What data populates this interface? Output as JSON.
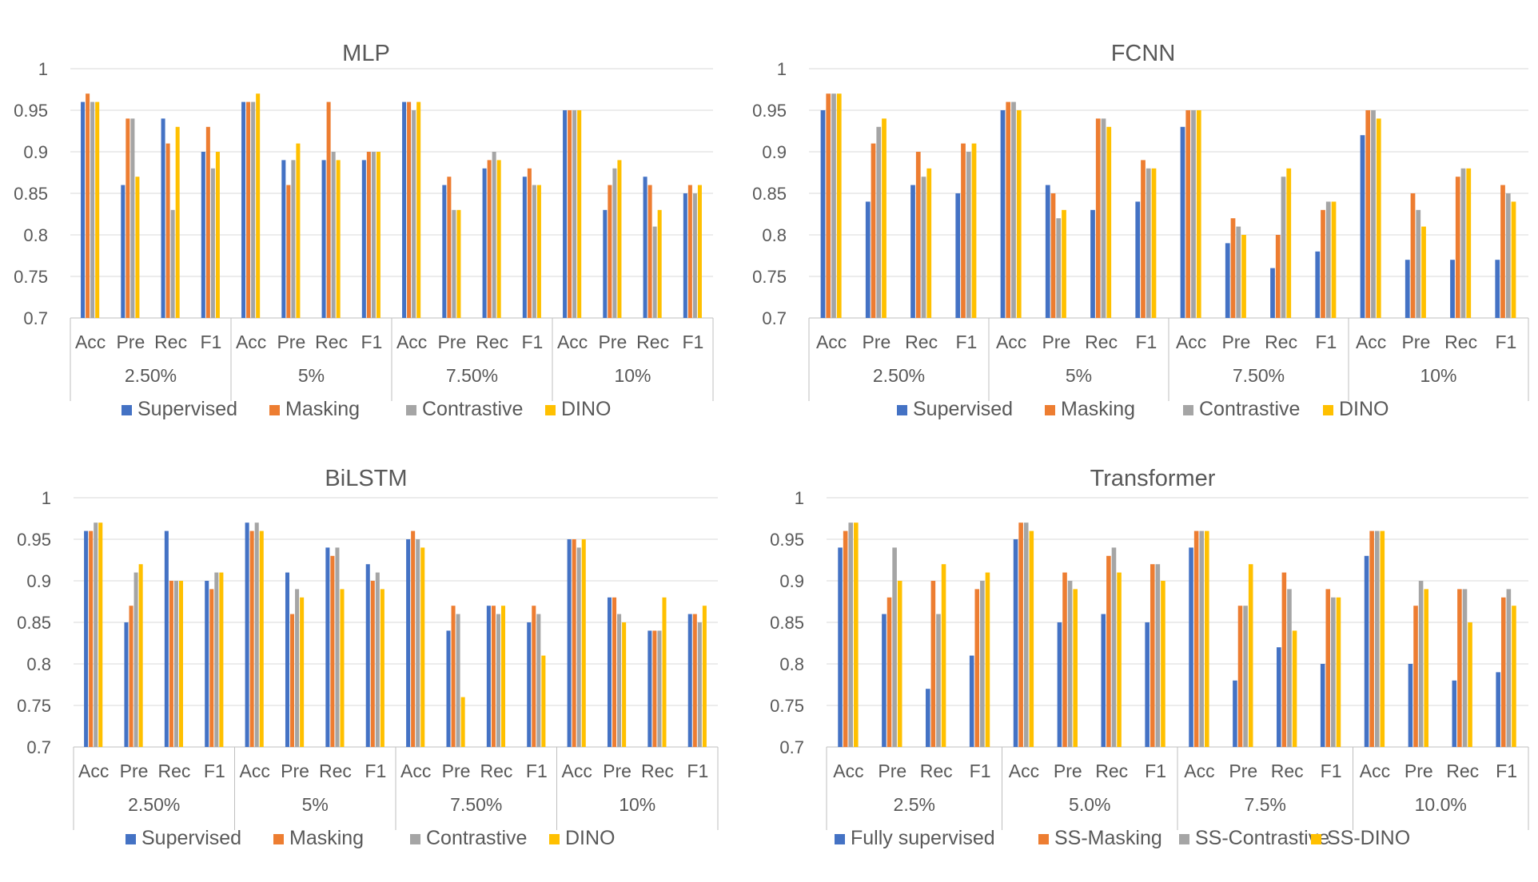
{
  "colors": {
    "series": [
      "#4472C4",
      "#ED7D31",
      "#A5A5A5",
      "#FFC000"
    ]
  },
  "chart_data": [
    {
      "type": "bar",
      "title": "MLP",
      "groups": [
        "2.50%",
        "5%",
        "7.50%",
        "10%"
      ],
      "metrics": [
        "Acc",
        "Pre",
        "Rec",
        "F1"
      ],
      "yticks": [
        "0.7",
        "0.75",
        "0.8",
        "0.85",
        "0.9",
        "0.95",
        "1"
      ],
      "ylim": [
        0.7,
        1.0
      ],
      "series": [
        {
          "name": "Supervised",
          "values": [
            0.96,
            0.86,
            0.94,
            0.9,
            0.96,
            0.89,
            0.89,
            0.89,
            0.96,
            0.86,
            0.88,
            0.87,
            0.95,
            0.83,
            0.87,
            0.85
          ]
        },
        {
          "name": "Masking",
          "values": [
            0.97,
            0.94,
            0.91,
            0.93,
            0.96,
            0.86,
            0.96,
            0.9,
            0.96,
            0.87,
            0.89,
            0.88,
            0.95,
            0.86,
            0.86,
            0.86
          ]
        },
        {
          "name": "Contrastive",
          "values": [
            0.96,
            0.94,
            0.83,
            0.88,
            0.96,
            0.89,
            0.9,
            0.9,
            0.95,
            0.83,
            0.9,
            0.86,
            0.95,
            0.88,
            0.81,
            0.85
          ]
        },
        {
          "name": "DINO",
          "values": [
            0.96,
            0.87,
            0.93,
            0.9,
            0.97,
            0.91,
            0.89,
            0.9,
            0.96,
            0.83,
            0.89,
            0.86,
            0.95,
            0.89,
            0.83,
            0.86
          ]
        }
      ]
    },
    {
      "type": "bar",
      "title": "FCNN",
      "groups": [
        "2.50%",
        "5%",
        "7.50%",
        "10%"
      ],
      "metrics": [
        "Acc",
        "Pre",
        "Rec",
        "F1"
      ],
      "yticks": [
        "0.7",
        "0.75",
        "0.8",
        "0.85",
        "0.9",
        "0.95",
        "1"
      ],
      "ylim": [
        0.7,
        1.0
      ],
      "series": [
        {
          "name": "Supervised",
          "values": [
            0.95,
            0.84,
            0.86,
            0.85,
            0.95,
            0.86,
            0.83,
            0.84,
            0.93,
            0.79,
            0.76,
            0.78,
            0.92,
            0.77,
            0.77,
            0.77
          ]
        },
        {
          "name": "Masking",
          "values": [
            0.97,
            0.91,
            0.9,
            0.91,
            0.96,
            0.85,
            0.94,
            0.89,
            0.95,
            0.82,
            0.8,
            0.83,
            0.95,
            0.85,
            0.87,
            0.86
          ]
        },
        {
          "name": "Contrastive",
          "values": [
            0.97,
            0.93,
            0.87,
            0.9,
            0.96,
            0.82,
            0.94,
            0.88,
            0.95,
            0.81,
            0.87,
            0.84,
            0.95,
            0.83,
            0.88,
            0.85
          ]
        },
        {
          "name": "DINO",
          "values": [
            0.97,
            0.94,
            0.88,
            0.91,
            0.95,
            0.83,
            0.93,
            0.88,
            0.95,
            0.8,
            0.88,
            0.84,
            0.94,
            0.81,
            0.88,
            0.84
          ]
        }
      ]
    },
    {
      "type": "bar",
      "title": "BiLSTM",
      "groups": [
        "2.50%",
        "5%",
        "7.50%",
        "10%"
      ],
      "metrics": [
        "Acc",
        "Pre",
        "Rec",
        "F1"
      ],
      "yticks": [
        "0.7",
        "0.75",
        "0.8",
        "0.85",
        "0.9",
        "0.95",
        "1"
      ],
      "ylim": [
        0.7,
        1.0
      ],
      "series": [
        {
          "name": "Supervised",
          "values": [
            0.96,
            0.85,
            0.96,
            0.9,
            0.97,
            0.91,
            0.94,
            0.92,
            0.95,
            0.84,
            0.87,
            0.85,
            0.95,
            0.88,
            0.84,
            0.86
          ]
        },
        {
          "name": "Masking",
          "values": [
            0.96,
            0.87,
            0.9,
            0.89,
            0.96,
            0.86,
            0.93,
            0.9,
            0.96,
            0.87,
            0.87,
            0.87,
            0.95,
            0.88,
            0.84,
            0.86
          ]
        },
        {
          "name": "Contrastive",
          "values": [
            0.97,
            0.91,
            0.9,
            0.91,
            0.97,
            0.89,
            0.94,
            0.91,
            0.95,
            0.86,
            0.86,
            0.86,
            0.94,
            0.86,
            0.84,
            0.85
          ]
        },
        {
          "name": "DINO",
          "values": [
            0.97,
            0.92,
            0.9,
            0.91,
            0.96,
            0.88,
            0.89,
            0.89,
            0.94,
            0.76,
            0.87,
            0.81,
            0.95,
            0.85,
            0.88,
            0.87
          ]
        }
      ]
    },
    {
      "type": "bar",
      "title": "Transformer",
      "groups": [
        "2.5%",
        "5.0%",
        "7.5%",
        "10.0%"
      ],
      "metrics": [
        "Acc",
        "Pre",
        "Rec",
        "F1"
      ],
      "yticks": [
        "0.7",
        "0.75",
        "0.8",
        "0.85",
        "0.9",
        "0.95",
        "1"
      ],
      "ylim": [
        0.7,
        1.0
      ],
      "series": [
        {
          "name": "Fully supervised",
          "values": [
            0.94,
            0.86,
            0.77,
            0.81,
            0.95,
            0.85,
            0.86,
            0.85,
            0.94,
            0.78,
            0.82,
            0.8,
            0.93,
            0.8,
            0.78,
            0.79
          ]
        },
        {
          "name": "SS-Masking",
          "values": [
            0.96,
            0.88,
            0.9,
            0.89,
            0.97,
            0.91,
            0.93,
            0.92,
            0.96,
            0.87,
            0.91,
            0.89,
            0.96,
            0.87,
            0.89,
            0.88
          ]
        },
        {
          "name": "SS-Contrastive",
          "values": [
            0.97,
            0.94,
            0.86,
            0.9,
            0.97,
            0.9,
            0.94,
            0.92,
            0.96,
            0.87,
            0.89,
            0.88,
            0.96,
            0.9,
            0.89,
            0.89
          ]
        },
        {
          "name": "SS-DINO",
          "values": [
            0.97,
            0.9,
            0.92,
            0.91,
            0.96,
            0.89,
            0.91,
            0.9,
            0.96,
            0.92,
            0.84,
            0.88,
            0.96,
            0.89,
            0.85,
            0.87
          ]
        }
      ]
    }
  ]
}
